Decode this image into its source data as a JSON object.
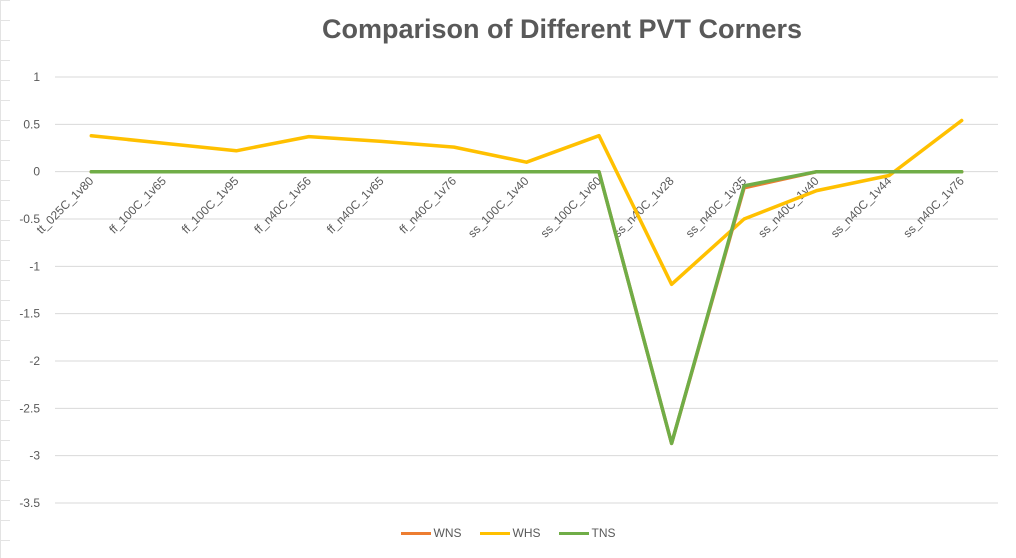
{
  "chart_data": {
    "type": "line",
    "title": "Comparison of Different PVT Corners",
    "xlabel": "",
    "ylabel": "",
    "categories": [
      "tt_025C_1v80",
      "ff_100C_1v65",
      "ff_100C_1v95",
      "ff_n40C_1v56",
      "ff_n40C_1v65",
      "ff_n40C_1v76",
      "ss_100C_1v40",
      "ss_100C_1v60",
      "ss_n40C_1v28",
      "ss_n40C_1v35",
      "ss_n40C_1v40",
      "ss_n40C_1v44",
      "ss_n40C_1v76"
    ],
    "ylim": [
      -3.5,
      1
    ],
    "yticks": [
      1,
      0.5,
      0,
      -0.5,
      -1,
      -1.5,
      -2,
      -2.5,
      -3,
      -3.5
    ],
    "ytick_labels": [
      "1",
      "0.5",
      "0",
      "-0.5",
      "-1",
      "-1.5",
      "-2",
      "-2.5",
      "-3",
      "-3.5"
    ],
    "grid": true,
    "legend_position": "bottom",
    "series": [
      {
        "name": "WNS",
        "color": "#ED7D31",
        "values": [
          0,
          0,
          0,
          0,
          0,
          0,
          0,
          0,
          -2.87,
          -0.17,
          0,
          0,
          0
        ]
      },
      {
        "name": "WHS",
        "color": "#FFC000",
        "values": [
          0.38,
          0.3,
          0.22,
          0.37,
          0.32,
          0.26,
          0.1,
          0.38,
          -1.19,
          -0.5,
          -0.2,
          -0.04,
          0.54
        ]
      },
      {
        "name": "TNS",
        "color": "#70AD47",
        "values": [
          0,
          0,
          0,
          0,
          0,
          0,
          0,
          0,
          -2.87,
          -0.15,
          0,
          0,
          0
        ]
      }
    ]
  }
}
